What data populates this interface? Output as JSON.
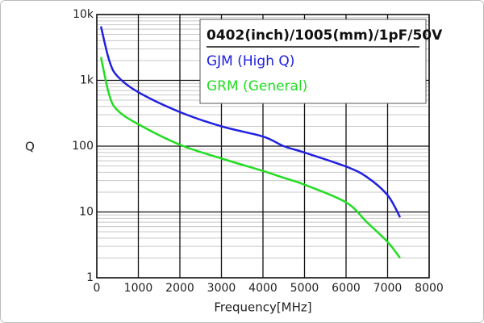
{
  "chart_data": {
    "type": "line",
    "legend_title": "0402(inch)/1005(mm)/1pF/50V",
    "x_label": "Frequency[MHz]",
    "y_label": "Q",
    "x": [
      100,
      300,
      500,
      1000,
      2000,
      3000,
      4000,
      4500,
      5000,
      6000,
      6500,
      7000,
      7300
    ],
    "series": [
      {
        "name": "GJM (High Q)",
        "color": "#2020e0",
        "values": [
          6600,
          2000,
          1150,
          660,
          330,
          200,
          140,
          100,
          80,
          49,
          34,
          18,
          8.3
        ]
      },
      {
        "name": "GRM (General)",
        "color": "#22dd22",
        "values": [
          2250,
          600,
          350,
          215,
          105,
          65,
          42,
          33,
          26,
          14,
          7,
          3.5,
          2.0
        ]
      }
    ],
    "xlim": [
      0,
      8000
    ],
    "xticks": [
      0,
      1000,
      2000,
      3000,
      4000,
      5000,
      6000,
      7000,
      8000
    ],
    "ylim": [
      1,
      10000
    ],
    "yticks": [
      1,
      10,
      100,
      {
        "value": 1000,
        "label": "1k"
      },
      {
        "value": 10000,
        "label": "10k"
      }
    ],
    "log_y": true,
    "grid": true,
    "minor_grid": true,
    "legend_position": "upper right"
  }
}
